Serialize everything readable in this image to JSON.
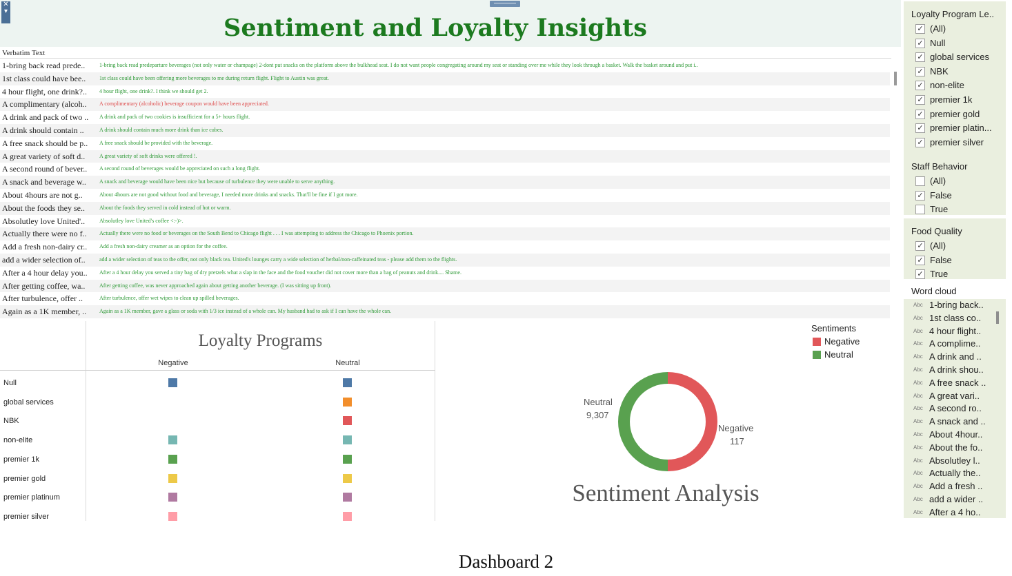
{
  "dashboard": {
    "title": "Sentiment and Loyalty Insights",
    "caption": "Dashboard 2"
  },
  "verbatim": {
    "header": "Verbatim Text",
    "rows": [
      {
        "label": "1-bring back read prede..",
        "text": "1-bring back read predeparture beverages (not only water or champage) 2-dont put snacks on the platform above the bulkhead seat. I do not want people congregating around my seat or standing over me while they look through a basket. Walk the basket around and put i..",
        "sentiment": "Neutral"
      },
      {
        "label": "1st class could have bee..",
        "text": "1st class could have been offering more beverages to me during return flight. Flight to Austin was great.",
        "sentiment": "Neutral"
      },
      {
        "label": "4 hour flight, one drink?..",
        "text": "4 hour flight, one drink?. I think we should get 2.",
        "sentiment": "Neutral"
      },
      {
        "label": "A complimentary (alcoh..",
        "text": "A complimentary (alcoholic) beverage coupon would have been appreciated.",
        "sentiment": "Negative"
      },
      {
        "label": "A drink and pack of two ..",
        "text": "A drink and pack of two cookies is insufficient for a 5+ hours flight.",
        "sentiment": "Neutral"
      },
      {
        "label": "A drink should contain ..",
        "text": "A drink should contain much more drink than ice cubes.",
        "sentiment": "Neutral"
      },
      {
        "label": "A free snack should be p..",
        "text": "A free snack should be provided with the beverage.",
        "sentiment": "Neutral"
      },
      {
        "label": "A great variety of soft d..",
        "text": "A great variety of soft drinks were offered !.",
        "sentiment": "Neutral"
      },
      {
        "label": "A second round of bever..",
        "text": "A second round of beverages would be appreciated on such a long flight.",
        "sentiment": "Neutral"
      },
      {
        "label": "A snack and beverage w..",
        "text": "A snack and beverage would have been nice but because of turbulence they were unable to serve anything.",
        "sentiment": "Neutral"
      },
      {
        "label": "About 4hours are not g..",
        "text": "About 4hours are not good without food and beverage, I needed more drinks and snacks. That'll be fine if I got more.",
        "sentiment": "Neutral"
      },
      {
        "label": "About the foods they se..",
        "text": "About the foods they served in cold instead of hot or warm.",
        "sentiment": "Neutral"
      },
      {
        "label": "Absolutley love United'..",
        "text": "Absolutley love United's coffee <:-)>.",
        "sentiment": "Neutral"
      },
      {
        "label": "Actually there were no f..",
        "text": "Actually there were no food or beverages on the South Bend to Chicago flight . . . I was attempting to address the Chicago to Phoenix portion.",
        "sentiment": "Neutral"
      },
      {
        "label": "Add a fresh non-dairy cr..",
        "text": "Add a fresh non-dairy creamer as an option for the coffee.",
        "sentiment": "Neutral"
      },
      {
        "label": "add a wider selection of..",
        "text": "add a wider selection of teas to the offer, not only black tea. United's lounges carry a wide selection of herbal/non-caffeinated teas - please add them to the flights.",
        "sentiment": "Neutral"
      },
      {
        "label": "After a 4 hour delay you..",
        "text": "After a 4 hour delay you served a tiny bag of dry pretzels what a slap in the face and the food voucher did not cover more than a bag of peanuts and drink.... Shame.",
        "sentiment": "Neutral"
      },
      {
        "label": "After getting coffee, wa..",
        "text": "After getting coffee, was never approached again about getting another beverage. (I was sitting up front).",
        "sentiment": "Neutral"
      },
      {
        "label": "After turbulence, offer ..",
        "text": "After turbulence, offer wet wipes to clean up spilled beverages.",
        "sentiment": "Neutral"
      },
      {
        "label": "Again as a 1K member, ..",
        "text": "Again as a 1K member, gave a glass or soda with 1/3 ice instead of a whole can. My husband had to ask if I can have the whole can.",
        "sentiment": "Neutral"
      }
    ]
  },
  "loyalty_programs": {
    "title": "Loyalty Programs",
    "columns": [
      "Negative",
      "Neutral"
    ],
    "rows": [
      {
        "label": "Null",
        "negative": true,
        "neutral": true,
        "negative_color": "#4e79a7",
        "neutral_color": "#4e79a7"
      },
      {
        "label": "global services",
        "negative": false,
        "neutral": true,
        "negative_color": "",
        "neutral_color": "#f28e2b"
      },
      {
        "label": "NBK",
        "negative": false,
        "neutral": true,
        "negative_color": "",
        "neutral_color": "#e15759"
      },
      {
        "label": "non-elite",
        "negative": true,
        "neutral": true,
        "negative_color": "#76b7b2",
        "neutral_color": "#76b7b2"
      },
      {
        "label": "premier 1k",
        "negative": true,
        "neutral": true,
        "negative_color": "#59a14f",
        "neutral_color": "#59a14f"
      },
      {
        "label": "premier gold",
        "negative": true,
        "neutral": true,
        "negative_color": "#edc948",
        "neutral_color": "#edc948"
      },
      {
        "label": "premier platinum",
        "negative": true,
        "neutral": true,
        "negative_color": "#b07aa1",
        "neutral_color": "#b07aa1"
      },
      {
        "label": "premier silver",
        "negative": true,
        "neutral": true,
        "negative_color": "#ff9da7",
        "neutral_color": "#ff9da7"
      }
    ]
  },
  "sentiment": {
    "title": "Sentiment Analysis",
    "legend_title": "Sentiments",
    "slices": [
      {
        "name": "Negative",
        "value": 117,
        "value_label": "117",
        "color": "#e15759"
      },
      {
        "name": "Neutral",
        "value": 9307,
        "value_label": "9,307",
        "color": "#59a14f"
      }
    ]
  },
  "chart_data": {
    "type": "pie",
    "title": "Sentiment Analysis",
    "categories": [
      "Negative",
      "Neutral"
    ],
    "values": [
      117,
      9307
    ],
    "legend": "top-right"
  },
  "filters": [
    {
      "title": "Loyalty Program Le..",
      "items": [
        {
          "label": "(All)",
          "checked": true
        },
        {
          "label": "Null",
          "checked": true
        },
        {
          "label": "global services",
          "checked": true
        },
        {
          "label": "NBK",
          "checked": true
        },
        {
          "label": "non-elite",
          "checked": true
        },
        {
          "label": "premier 1k",
          "checked": true
        },
        {
          "label": "premier gold",
          "checked": true
        },
        {
          "label": "premier platin...",
          "checked": true
        },
        {
          "label": "premier silver",
          "checked": true
        }
      ]
    },
    {
      "title": "Staff Behavior",
      "items": [
        {
          "label": "(All)",
          "checked": false
        },
        {
          "label": "False",
          "checked": true
        },
        {
          "label": "True",
          "checked": false
        }
      ]
    },
    {
      "title": "Food Quality",
      "items": [
        {
          "label": "(All)",
          "checked": true
        },
        {
          "label": "False",
          "checked": true
        },
        {
          "label": "True",
          "checked": true
        }
      ]
    }
  ],
  "word_cloud": {
    "title": "Word cloud",
    "type_badge": "Abc",
    "items": [
      "1-bring back..",
      "1st class co..",
      "4 hour flight..",
      "A complime..",
      "A drink and ..",
      "A drink shou..",
      "A free snack ..",
      "A great vari..",
      "A second ro..",
      "A snack and ..",
      "About 4hour..",
      "About the fo..",
      "Absolutley l..",
      "Actually the..",
      "Add a fresh ..",
      "add a wider ..",
      "After a 4 ho.."
    ]
  },
  "colors": {
    "title_green": "#1c7a1f",
    "negative": "#e15759",
    "neutral": "#59a14f",
    "filter_bg": "#eaefdf"
  }
}
